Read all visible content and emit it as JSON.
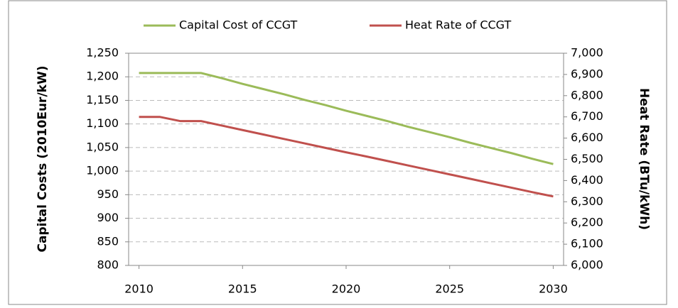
{
  "chart_data": {
    "type": "line",
    "x": [
      2010,
      2011,
      2012,
      2013,
      2014,
      2015,
      2016,
      2017,
      2018,
      2019,
      2020,
      2021,
      2022,
      2023,
      2024,
      2025,
      2026,
      2027,
      2028,
      2029,
      2030
    ],
    "xlim": [
      2009.5,
      2030.5
    ],
    "xticks": [
      2010,
      2015,
      2020,
      2025,
      2030
    ],
    "ylabel": "Capital Costs (2010Eur/kW)",
    "y2label": "Heat Rate (BTu/kWh)",
    "ylim": [
      800,
      1250
    ],
    "yticks": [
      800,
      850,
      900,
      950,
      {
        "value": 1000,
        "label": "1,000"
      },
      {
        "value": 1050,
        "label": "1,050"
      },
      {
        "value": 1100,
        "label": "1,100"
      },
      {
        "value": 1150,
        "label": "1,150"
      },
      {
        "value": 1200,
        "label": "1,200"
      },
      {
        "value": 1250,
        "label": "1,250"
      }
    ],
    "y2lim": [
      6000,
      7000
    ],
    "y2ticks": [
      {
        "value": 6000,
        "label": "6,000"
      },
      {
        "value": 6100,
        "label": "6,100"
      },
      {
        "value": 6200,
        "label": "6,200"
      },
      {
        "value": 6300,
        "label": "6,300"
      },
      {
        "value": 6400,
        "label": "6,400"
      },
      {
        "value": 6500,
        "label": "6,500"
      },
      {
        "value": 6600,
        "label": "6,600"
      },
      {
        "value": 6700,
        "label": "6,700"
      },
      {
        "value": 6800,
        "label": "6,800"
      },
      {
        "value": 6900,
        "label": "6,900"
      },
      {
        "value": 7000,
        "label": "7,000"
      }
    ],
    "grid": true,
    "legend": "top",
    "series": [
      {
        "name": "Capital Cost of CCGT",
        "color": "#9bbb59",
        "values": [
          1208,
          1208,
          1208,
          1208,
          1197,
          1185,
          1174,
          1163,
          1151,
          1140,
          1128,
          1117,
          1106,
          1094,
          1083,
          1072,
          1060,
          1049,
          1038,
          1026,
          1015
        ]
      },
      {
        "name": "Heat Rate of CCGT",
        "color": "#c0504d",
        "axis": "y2",
        "values": [
          6700,
          6700,
          6680,
          6680,
          6659,
          6638,
          6617,
          6596,
          6575,
          6554,
          6533,
          6513,
          6492,
          6471,
          6450,
          6429,
          6408,
          6387,
          6366,
          6345,
          6325
        ]
      }
    ]
  }
}
